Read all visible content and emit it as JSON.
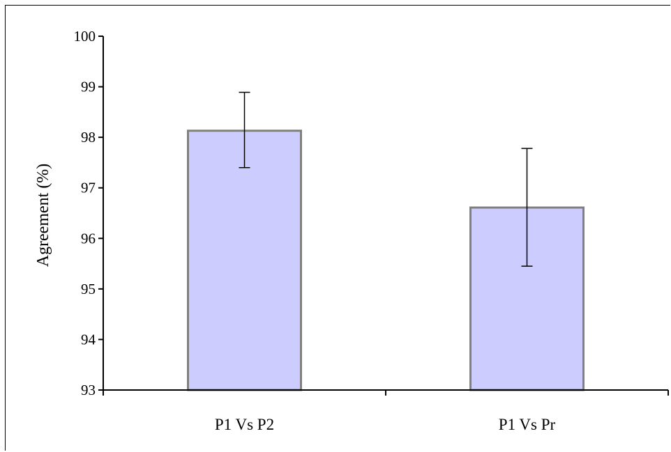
{
  "chart_data": {
    "type": "bar",
    "categories": [
      "P1 Vs P2",
      "P1 Vs Pr"
    ],
    "values": [
      98.13,
      96.61
    ],
    "error_low": [
      97.4,
      95.45
    ],
    "error_high": [
      98.89,
      97.78
    ],
    "ylabel": "Agreement (%)",
    "xlabel": "",
    "ylim": [
      93,
      100
    ],
    "yticks": [
      93,
      94,
      95,
      96,
      97,
      98,
      99,
      100
    ],
    "grid": false,
    "legend": false,
    "colors": {
      "bar_fill": "#ccccff",
      "bar_stroke": "#808080",
      "axis": "#000000"
    }
  }
}
